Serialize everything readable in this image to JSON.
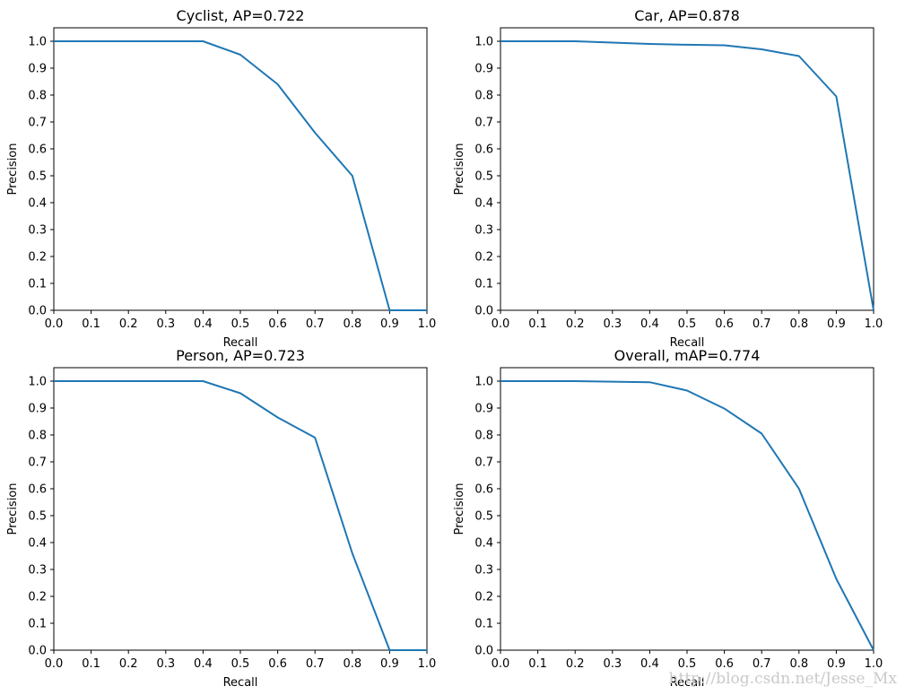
{
  "chart_data": [
    {
      "type": "line",
      "title": "Cyclist, AP=0.722",
      "xlabel": "Recall",
      "ylabel": "Precision",
      "xlim": [
        0,
        1
      ],
      "ylim": [
        0,
        1.05
      ],
      "x": [
        0.0,
        0.1,
        0.2,
        0.3,
        0.4,
        0.5,
        0.6,
        0.7,
        0.8,
        0.9,
        1.0
      ],
      "y": [
        1.0,
        1.0,
        1.0,
        1.0,
        1.0,
        0.95,
        0.84,
        0.66,
        0.5,
        0.0,
        0.0
      ],
      "xticks": [
        "0.0",
        "0.1",
        "0.2",
        "0.3",
        "0.4",
        "0.5",
        "0.6",
        "0.7",
        "0.8",
        "0.9",
        "1.0"
      ],
      "yticks": [
        "0.0",
        "0.1",
        "0.2",
        "0.3",
        "0.4",
        "0.5",
        "0.6",
        "0.7",
        "0.8",
        "0.9",
        "1.0"
      ],
      "color": "#1f77b4"
    },
    {
      "type": "line",
      "title": "Car, AP=0.878",
      "xlabel": "Recall",
      "ylabel": "Precision",
      "xlim": [
        0,
        1
      ],
      "ylim": [
        0,
        1.05
      ],
      "x": [
        0.0,
        0.1,
        0.2,
        0.3,
        0.4,
        0.5,
        0.6,
        0.7,
        0.8,
        0.9,
        1.0
      ],
      "y": [
        1.0,
        1.0,
        1.0,
        0.995,
        0.99,
        0.987,
        0.985,
        0.97,
        0.945,
        0.795,
        0.0
      ],
      "xticks": [
        "0.0",
        "0.1",
        "0.2",
        "0.3",
        "0.4",
        "0.5",
        "0.6",
        "0.7",
        "0.8",
        "0.9",
        "1.0"
      ],
      "yticks": [
        "0.0",
        "0.1",
        "0.2",
        "0.3",
        "0.4",
        "0.5",
        "0.6",
        "0.7",
        "0.8",
        "0.9",
        "1.0"
      ],
      "color": "#1f77b4"
    },
    {
      "type": "line",
      "title": "Person, AP=0.723",
      "xlabel": "Recall",
      "ylabel": "Precision",
      "xlim": [
        0,
        1
      ],
      "ylim": [
        0,
        1.05
      ],
      "x": [
        0.0,
        0.1,
        0.2,
        0.3,
        0.4,
        0.5,
        0.6,
        0.7,
        0.8,
        0.9,
        1.0
      ],
      "y": [
        1.0,
        1.0,
        1.0,
        1.0,
        1.0,
        0.955,
        0.865,
        0.79,
        0.36,
        0.0,
        0.0
      ],
      "xticks": [
        "0.0",
        "0.1",
        "0.2",
        "0.3",
        "0.4",
        "0.5",
        "0.6",
        "0.7",
        "0.8",
        "0.9",
        "1.0"
      ],
      "yticks": [
        "0.0",
        "0.1",
        "0.2",
        "0.3",
        "0.4",
        "0.5",
        "0.6",
        "0.7",
        "0.8",
        "0.9",
        "1.0"
      ],
      "color": "#1f77b4"
    },
    {
      "type": "line",
      "title": "Overall, mAP=0.774",
      "xlabel": "Recall",
      "ylabel": "Precision",
      "xlim": [
        0,
        1
      ],
      "ylim": [
        0,
        1.05
      ],
      "x": [
        0.0,
        0.1,
        0.2,
        0.3,
        0.4,
        0.5,
        0.6,
        0.7,
        0.8,
        0.9,
        1.0
      ],
      "y": [
        1.0,
        1.0,
        1.0,
        0.998,
        0.996,
        0.965,
        0.898,
        0.805,
        0.6,
        0.265,
        0.0
      ],
      "xticks": [
        "0.0",
        "0.1",
        "0.2",
        "0.3",
        "0.4",
        "0.5",
        "0.6",
        "0.7",
        "0.8",
        "0.9",
        "1.0"
      ],
      "yticks": [
        "0.0",
        "0.1",
        "0.2",
        "0.3",
        "0.4",
        "0.5",
        "0.6",
        "0.7",
        "0.8",
        "0.9",
        "1.0"
      ],
      "color": "#1f77b4"
    }
  ],
  "watermark": "http://blog.csdn.net/Jesse_Mx"
}
